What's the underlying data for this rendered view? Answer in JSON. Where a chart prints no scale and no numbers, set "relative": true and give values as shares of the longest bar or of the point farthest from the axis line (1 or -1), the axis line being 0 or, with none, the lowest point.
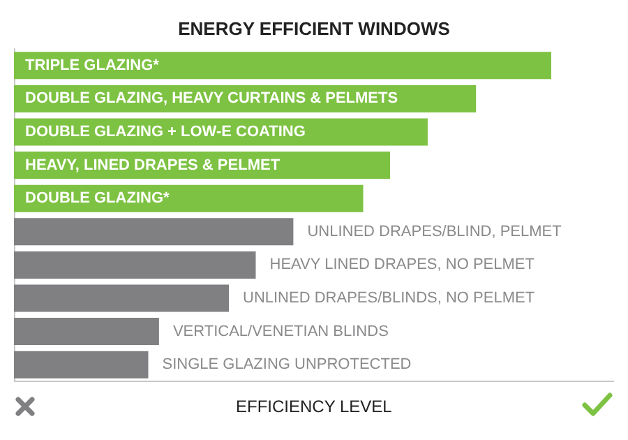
{
  "chart_data": {
    "type": "bar",
    "colors": [
      "#7dc242",
      "#7dc242",
      "#7dc242",
      "#7dc242",
      "#7dc242",
      "#808083",
      "#808083",
      "#808083",
      "#808083",
      "#808083"
    ],
    "orientation": "horizontal",
    "relative": true,
    "title": "ENERGY EFFICIENT WINDOWS",
    "xlabel": "EFFICIENCY LEVEL",
    "categories": [
      "TRIPLE GLAZING*",
      "DOUBLE GLAZING, HEAVY CURTAINS & PELMETS",
      "DOUBLE GLAZING + LOW-E COATING",
      "HEAVY, LINED DRAPES & PELMET",
      "DOUBLE GLAZING*",
      "UNLINED DRAPES/BLIND, PELMET",
      "HEAVY LINED DRAPES, NO PELMET",
      "UNLINED DRAPES/BLINDS, NO PELMET",
      "VERTICAL/VENETIAN BLINDS",
      "SINGLE GLAZING UNPROTECTED"
    ],
    "values": [
      1,
      0.86,
      0.77,
      0.7,
      0.65,
      0.52,
      0.45,
      0.4,
      0.27,
      0.25
    ]
  }
}
